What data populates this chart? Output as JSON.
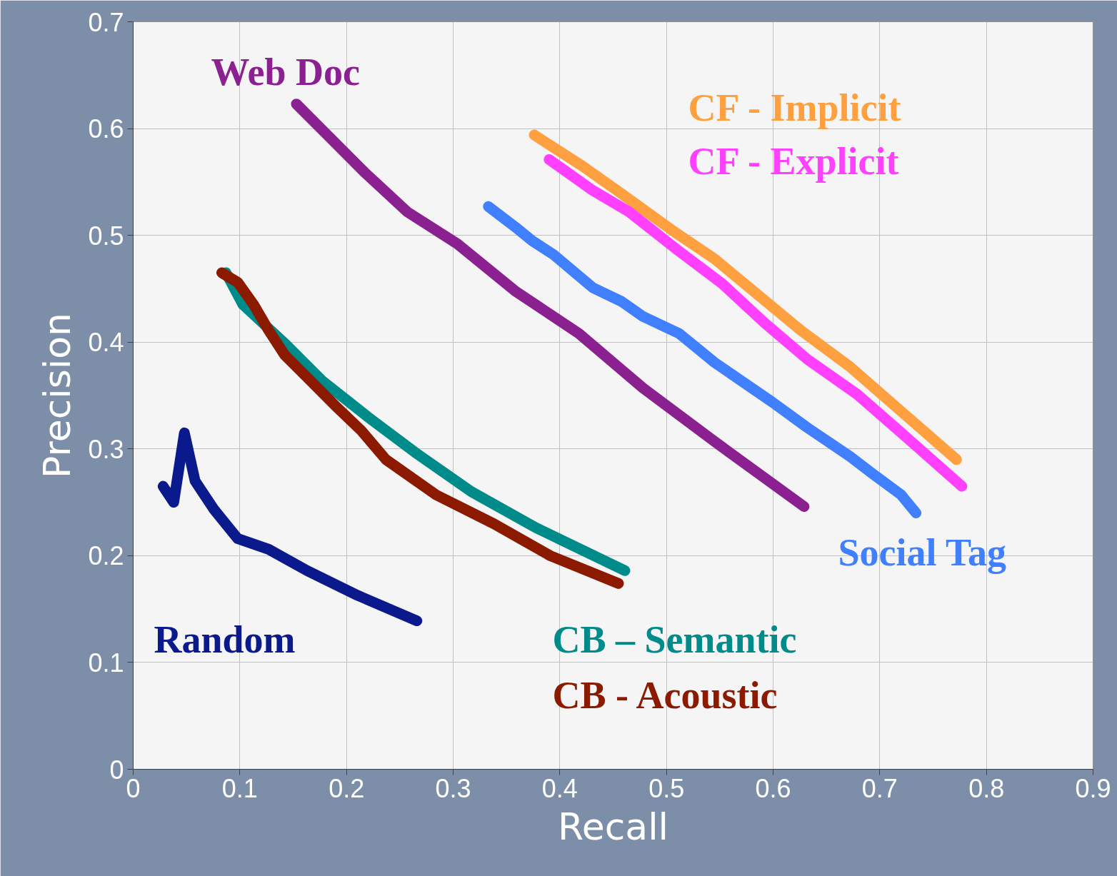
{
  "chart_data": {
    "type": "line",
    "xlabel": "Recall",
    "ylabel": "Precision",
    "xlim": [
      0,
      0.9
    ],
    "ylim": [
      0,
      0.7
    ],
    "xticks": [
      0,
      0.1,
      0.2,
      0.3,
      0.4,
      0.5,
      0.6,
      0.7,
      0.8,
      0.9
    ],
    "yticks": [
      0,
      0.1,
      0.2,
      0.3,
      0.4,
      0.5,
      0.6,
      0.7
    ],
    "grid": true,
    "legend": false,
    "line_style": "solid",
    "series": [
      {
        "name": "Random",
        "color": "#0a1a8c",
        "x": [
          0.028,
          0.038,
          0.048,
          0.058,
          0.076,
          0.098,
          0.127,
          0.163,
          0.21,
          0.266
        ],
        "values": [
          0.265,
          0.25,
          0.315,
          0.27,
          0.243,
          0.216,
          0.206,
          0.186,
          0.163,
          0.139
        ]
      },
      {
        "name": "CB – Semantic",
        "color": "#008b8b",
        "x": [
          0.087,
          0.103,
          0.143,
          0.177,
          0.22,
          0.264,
          0.317,
          0.378,
          0.461
        ],
        "values": [
          0.465,
          0.435,
          0.398,
          0.364,
          0.33,
          0.297,
          0.26,
          0.226,
          0.186
        ]
      },
      {
        "name": "CB - Acoustic",
        "color": "#8b1a00",
        "x": [
          0.083,
          0.098,
          0.113,
          0.127,
          0.142,
          0.163,
          0.19,
          0.214,
          0.237,
          0.284,
          0.338,
          0.391,
          0.455
        ],
        "values": [
          0.465,
          0.456,
          0.435,
          0.411,
          0.388,
          0.367,
          0.34,
          0.317,
          0.29,
          0.257,
          0.23,
          0.2,
          0.174
        ]
      },
      {
        "name": "Web Doc",
        "color": "#8b2090",
        "x": [
          0.153,
          0.184,
          0.217,
          0.257,
          0.304,
          0.358,
          0.418,
          0.478,
          0.545,
          0.629
        ],
        "values": [
          0.623,
          0.592,
          0.559,
          0.522,
          0.492,
          0.448,
          0.408,
          0.357,
          0.307,
          0.246
        ]
      },
      {
        "name": "Social Tag",
        "color": "#4080ff",
        "x": [
          0.333,
          0.358,
          0.374,
          0.394,
          0.431,
          0.458,
          0.478,
          0.512,
          0.545,
          0.599,
          0.632,
          0.672,
          0.693,
          0.72,
          0.734
        ],
        "values": [
          0.527,
          0.508,
          0.495,
          0.482,
          0.451,
          0.438,
          0.424,
          0.408,
          0.381,
          0.344,
          0.32,
          0.293,
          0.277,
          0.257,
          0.24
        ]
      },
      {
        "name": "CF - Implicit",
        "color": "#ffa040",
        "x": [
          0.376,
          0.421,
          0.458,
          0.505,
          0.545,
          0.585,
          0.626,
          0.672,
          0.726,
          0.772
        ],
        "values": [
          0.594,
          0.565,
          0.539,
          0.505,
          0.478,
          0.445,
          0.411,
          0.377,
          0.33,
          0.29
        ]
      },
      {
        "name": "CF - Explicit",
        "color": "#ff40ff",
        "x": [
          0.39,
          0.431,
          0.465,
          0.512,
          0.552,
          0.592,
          0.632,
          0.679,
          0.726,
          0.777
        ],
        "values": [
          0.571,
          0.542,
          0.522,
          0.485,
          0.455,
          0.418,
          0.384,
          0.351,
          0.31,
          0.265
        ]
      }
    ]
  }
}
